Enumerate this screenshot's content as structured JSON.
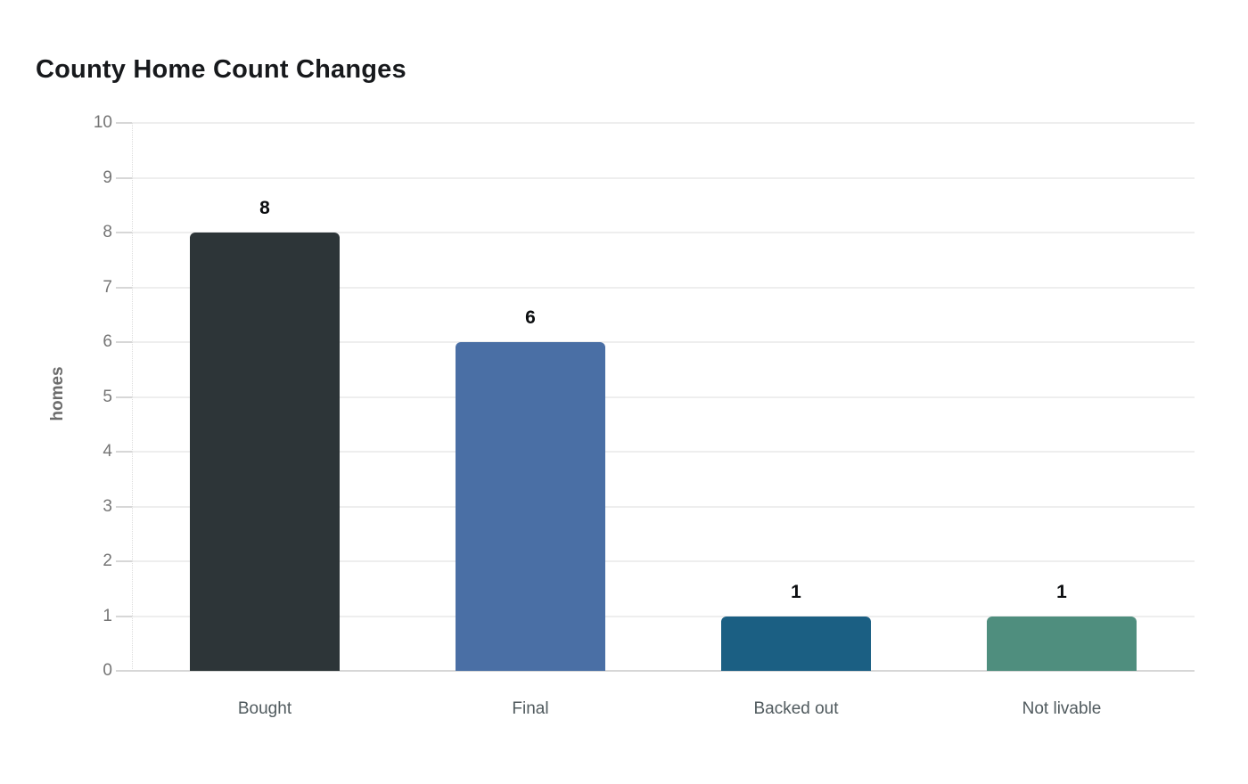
{
  "chart_data": {
    "type": "bar",
    "title": "County Home Count Changes",
    "categories": [
      "Bought",
      "Final",
      "Backed out",
      "Not livable"
    ],
    "values": [
      8,
      6,
      1,
      1
    ],
    "value_labels": [
      "8",
      "6",
      "1",
      "1"
    ],
    "bar_colors": [
      "#2d3538",
      "#4a6fa5",
      "#1b5f83",
      "#4f8e7e"
    ],
    "xlabel": "",
    "ylabel": "homes",
    "ylim": [
      0,
      10
    ],
    "ytick_step": 1,
    "ytick_labels": [
      "0",
      "1",
      "2",
      "3",
      "4",
      "5",
      "6",
      "7",
      "8",
      "9",
      "10"
    ],
    "grid": "horizontal",
    "legend": "none",
    "background_color": "#ffffff",
    "title_color": "#17191c",
    "axis_text_color": "#757575",
    "category_text_color": "#505a5e",
    "gridline_color": "#eeeeee",
    "axis_line_color": "#d7d7d7"
  }
}
